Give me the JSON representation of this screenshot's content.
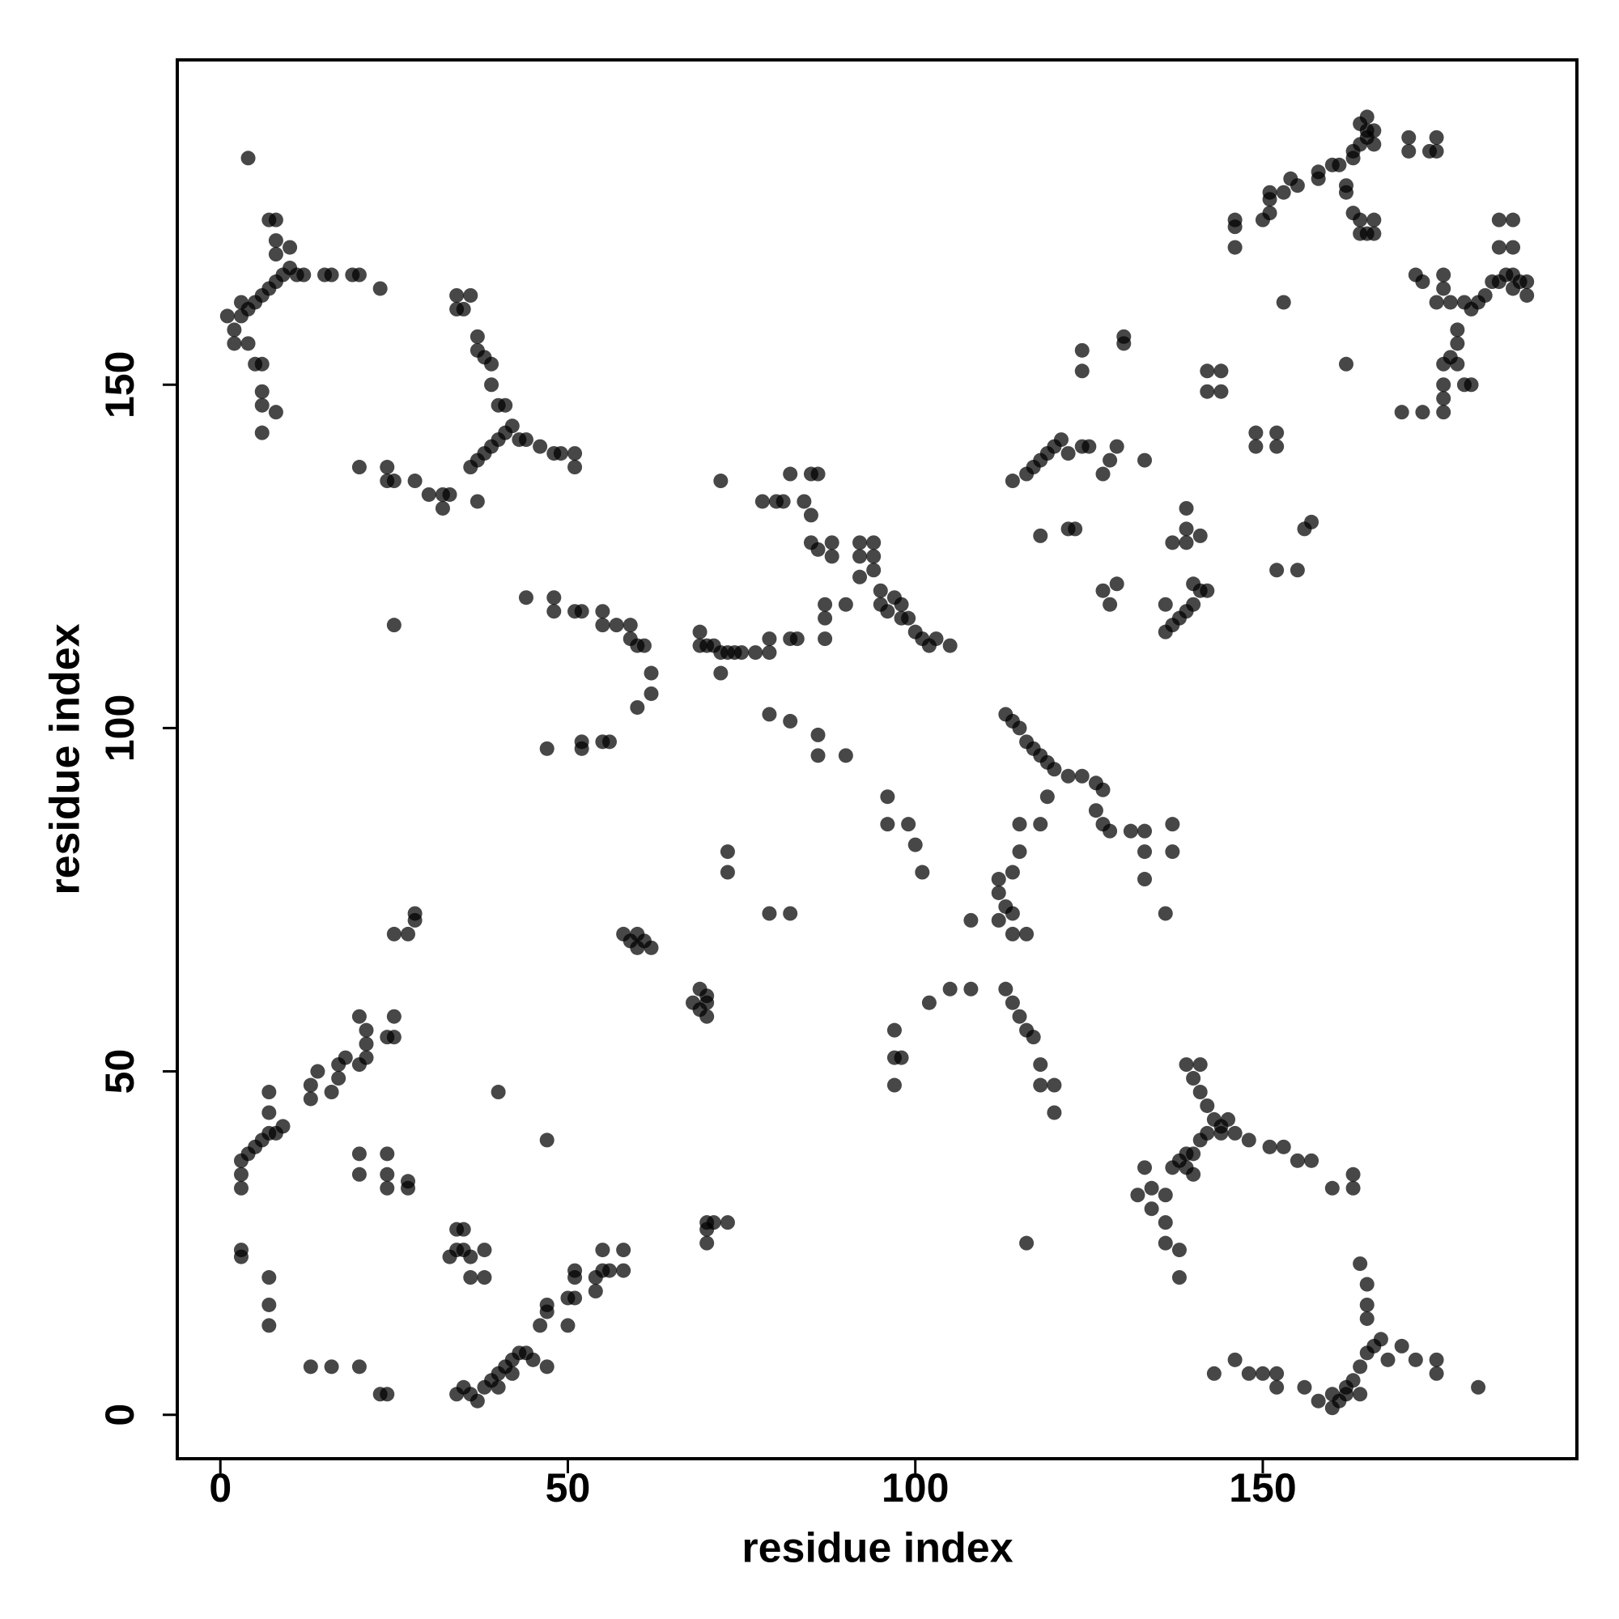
{
  "chart_data": {
    "type": "scatter",
    "xlabel": "residue index",
    "ylabel": "residue index",
    "color": "#000000",
    "alpha": 0.72,
    "xlim": [
      -6.2,
      195.2
    ],
    "ylim": [
      -6.4,
      197.3
    ],
    "xticks": [
      0,
      50,
      100,
      150
    ],
    "yticks": [
      0,
      50,
      100,
      150
    ],
    "x": [
      160,
      161,
      162,
      163,
      164,
      165,
      166,
      167,
      165,
      165,
      165,
      164,
      163,
      163,
      160,
      157,
      155,
      153,
      151,
      148,
      146,
      144,
      148,
      150,
      152,
      152,
      156,
      158,
      160,
      146,
      143,
      168,
      170,
      172,
      175,
      175,
      181,
      164,
      162,
      140,
      141,
      142,
      143,
      142,
      141,
      140,
      139,
      141,
      139,
      138,
      137,
      139,
      140,
      144,
      145,
      136,
      134,
      132,
      134,
      136,
      136,
      138,
      138,
      133,
      113,
      114,
      115,
      116,
      117,
      118,
      119,
      120,
      122,
      124,
      126,
      127,
      126,
      127,
      128,
      131,
      133,
      133,
      133,
      137,
      137,
      136,
      112,
      112,
      113,
      114,
      114,
      115,
      115,
      118,
      119,
      116,
      114,
      112,
      108,
      113,
      114,
      115,
      116,
      117,
      118,
      118,
      120,
      120,
      116,
      105,
      108,
      102,
      97,
      97,
      98,
      97,
      100,
      101,
      99,
      96,
      96,
      90,
      86,
      86,
      82,
      79,
      69,
      70,
      69,
      70,
      68,
      70,
      58,
      59,
      60,
      61,
      62,
      60,
      73,
      73,
      79,
      82,
      70,
      71,
      73,
      70,
      70,
      72,
      47,
      52,
      52,
      55,
      56,
      36,
      37,
      38,
      39,
      40,
      41,
      42,
      43,
      45,
      47,
      46,
      47,
      47,
      50,
      50,
      51,
      51,
      51,
      54,
      54,
      55,
      55,
      56,
      58,
      58,
      34,
      35,
      40,
      42,
      44,
      33,
      34,
      35,
      36,
      35,
      34,
      36,
      38,
      38,
      40,
      47,
      13,
      16,
      20,
      23,
      24,
      3,
      4,
      5,
      6,
      7,
      8,
      9,
      7,
      7,
      3,
      3,
      13,
      13,
      14,
      16,
      17,
      17,
      18,
      20,
      21,
      21,
      21,
      24,
      25,
      25,
      20,
      20,
      20,
      24,
      24,
      24,
      27,
      27,
      3,
      3,
      7,
      7,
      7,
      25,
      27,
      28,
      28,
      25,
      1,
      2,
      3,
      3,
      4,
      5,
      6,
      7,
      8,
      9,
      10,
      11,
      12,
      8,
      8,
      7,
      8,
      10,
      4,
      4,
      5,
      6,
      6,
      6,
      6,
      8,
      15,
      16,
      19,
      20,
      23,
      2,
      37,
      38,
      39,
      40,
      41,
      42,
      43,
      44,
      46,
      48,
      49,
      51,
      51,
      40,
      41,
      39,
      39,
      38,
      37,
      37,
      36,
      35,
      34,
      34,
      36,
      37,
      20,
      24,
      24,
      25,
      28,
      30,
      32,
      32,
      33,
      44,
      48,
      48,
      51,
      52,
      55,
      55,
      57,
      59,
      59,
      60,
      61,
      62,
      62,
      60,
      69,
      69,
      70,
      71,
      72,
      73,
      74,
      75,
      77,
      79,
      79,
      82,
      83,
      87,
      87,
      87,
      90,
      78,
      80,
      81,
      82,
      84,
      85,
      85,
      86,
      86,
      85,
      88,
      88,
      92,
      92,
      92,
      94,
      94,
      94,
      95,
      95,
      96,
      97,
      98,
      98,
      99,
      100,
      101,
      102,
      103,
      105,
      72,
      114,
      116,
      117,
      118,
      119,
      120,
      121,
      122,
      124,
      125,
      118,
      122,
      123,
      124,
      124,
      127,
      128,
      129,
      130,
      130,
      133,
      127,
      128,
      129,
      136,
      137,
      138,
      139,
      140,
      141,
      142,
      140,
      139,
      139,
      139,
      141,
      137,
      136,
      142,
      142,
      144,
      144,
      149,
      149,
      152,
      152,
      152,
      155,
      156,
      157,
      153,
      146,
      146,
      146,
      150,
      151,
      151,
      151,
      153,
      154,
      155,
      158,
      158,
      160,
      161,
      162,
      162,
      163,
      163,
      164,
      165,
      164,
      165,
      166,
      165,
      166,
      163,
      164,
      164,
      165,
      166,
      166,
      171,
      171,
      174,
      175,
      175,
      173,
      172,
      176,
      176,
      175,
      177,
      179,
      180,
      181,
      182,
      183,
      184,
      185,
      186,
      186,
      187,
      188,
      188,
      184,
      184,
      186,
      186,
      178,
      178,
      177,
      176,
      178,
      179,
      180,
      176,
      176,
      173,
      176,
      162,
      170
    ],
    "values": [
      3,
      2,
      4,
      5,
      7,
      9,
      10,
      11,
      14,
      16,
      19,
      22,
      33,
      35,
      33,
      37,
      37,
      39,
      39,
      40,
      41,
      42,
      6,
      6,
      4,
      6,
      4,
      2,
      1,
      8,
      6,
      8,
      10,
      8,
      8,
      6,
      4,
      3,
      3,
      38,
      40,
      41,
      43,
      45,
      47,
      49,
      51,
      51,
      38,
      37,
      36,
      36,
      35,
      41,
      43,
      32,
      33,
      32,
      30,
      28,
      25,
      24,
      20,
      36,
      102,
      101,
      100,
      98,
      97,
      96,
      95,
      94,
      93,
      93,
      92,
      91,
      88,
      86,
      85,
      85,
      85,
      82,
      78,
      86,
      82,
      73,
      78,
      76,
      74,
      73,
      79,
      82,
      86,
      86,
      90,
      70,
      70,
      72,
      72,
      62,
      60,
      58,
      56,
      55,
      51,
      48,
      48,
      44,
      25,
      62,
      62,
      60,
      56,
      52,
      52,
      48,
      83,
      79,
      86,
      90,
      86,
      96,
      96,
      99,
      101,
      102,
      62,
      60,
      59,
      58,
      60,
      61,
      70,
      69,
      68,
      69,
      68,
      70,
      82,
      79,
      73,
      73,
      28,
      28,
      28,
      25,
      27,
      108,
      97,
      97,
      98,
      98,
      98,
      3,
      2,
      4,
      5,
      6,
      7,
      8,
      9,
      8,
      7,
      13,
      15,
      16,
      13,
      17,
      17,
      20,
      21,
      18,
      20,
      21,
      24,
      21,
      21,
      24,
      3,
      4,
      4,
      6,
      9,
      23,
      24,
      24,
      23,
      27,
      27,
      20,
      20,
      24,
      47,
      40,
      7,
      7,
      7,
      3,
      3,
      37,
      38,
      39,
      40,
      41,
      41,
      42,
      44,
      47,
      35,
      33,
      46,
      48,
      50,
      47,
      49,
      51,
      52,
      51,
      52,
      54,
      56,
      55,
      58,
      55,
      58,
      35,
      38,
      33,
      35,
      38,
      33,
      34,
      24,
      23,
      20,
      16,
      13,
      70,
      70,
      72,
      73,
      115,
      160,
      158,
      160,
      162,
      161,
      162,
      163,
      164,
      165,
      166,
      167,
      166,
      166,
      169,
      171,
      174,
      174,
      170,
      183,
      156,
      153,
      153,
      149,
      147,
      143,
      146,
      166,
      166,
      166,
      166,
      164,
      156,
      139,
      140,
      141,
      142,
      143,
      144,
      142,
      142,
      141,
      140,
      140,
      140,
      138,
      147,
      147,
      150,
      153,
      154,
      155,
      157,
      163,
      161,
      161,
      163,
      138,
      133,
      138,
      138,
      136,
      136,
      136,
      134,
      134,
      132,
      134,
      119,
      119,
      117,
      117,
      117,
      117,
      115,
      115,
      115,
      113,
      112,
      112,
      108,
      105,
      103,
      114,
      112,
      112,
      112,
      111,
      111,
      111,
      111,
      111,
      111,
      113,
      113,
      113,
      113,
      116,
      118,
      118,
      133,
      133,
      133,
      137,
      133,
      131,
      127,
      126,
      137,
      137,
      125,
      127,
      122,
      125,
      127,
      123,
      125,
      127,
      120,
      118,
      117,
      119,
      118,
      116,
      116,
      114,
      113,
      112,
      113,
      112,
      136,
      136,
      137,
      138,
      139,
      140,
      141,
      142,
      140,
      141,
      141,
      128,
      129,
      129,
      152,
      155,
      137,
      139,
      141,
      156,
      157,
      139,
      120,
      118,
      121,
      114,
      115,
      116,
      117,
      118,
      120,
      120,
      121,
      127,
      129,
      132,
      128,
      127,
      118,
      149,
      152,
      149,
      152,
      141,
      143,
      141,
      143,
      123,
      123,
      129,
      130,
      162,
      170,
      173,
      174,
      174,
      175,
      177,
      178,
      178,
      180,
      179,
      180,
      181,
      182,
      182,
      179,
      178,
      183,
      184,
      185,
      186,
      188,
      187,
      187,
      189,
      185,
      175,
      174,
      172,
      172,
      174,
      172,
      186,
      184,
      184,
      186,
      184,
      165,
      166,
      166,
      164,
      162,
      162,
      162,
      161,
      162,
      163,
      165,
      165,
      166,
      166,
      164,
      165,
      163,
      165,
      174,
      170,
      174,
      170,
      158,
      156,
      154,
      153,
      153,
      150,
      150,
      150,
      148,
      146,
      146,
      153,
      146
    ]
  }
}
